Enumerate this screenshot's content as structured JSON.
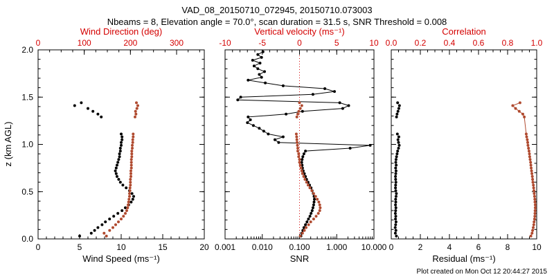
{
  "title": "VAD_08_20150710_072945, 20150710.073003",
  "subtitle": "Nbeams = 8, Elevation angle = 70.0°, scan duration = 31.5 s, SNR Threshold = 0.008",
  "footer": "Plot created on Mon Oct 12 20:44:27 2015",
  "ylabel": "z (km AGL)",
  "colors": {
    "axis_red": "#d40000",
    "series_red": "#b04a2f",
    "black": "#000000",
    "background": "#ffffff"
  },
  "chart_data": [
    {
      "type": "scatter",
      "panel": "wind",
      "xlabel_bottom": "Wind Speed (ms⁻¹)",
      "xlabel_top": "Wind Direction (deg)",
      "bottom_axis": {
        "scale": "linear",
        "lim": [
          0,
          20
        ],
        "ticks": [
          0,
          5,
          10,
          15,
          20
        ],
        "tick_labels": [
          "0",
          "5",
          "10",
          "15",
          "20"
        ],
        "minor": 1
      },
      "top_axis": {
        "scale": "linear",
        "lim": [
          0,
          360
        ],
        "ticks": [
          0,
          100,
          200,
          300
        ],
        "tick_labels": [
          "0",
          "100",
          "200",
          "300"
        ],
        "minor": 25
      },
      "y_axis": {
        "lim": [
          0,
          2
        ],
        "ticks": [
          0,
          0.5,
          1,
          1.5,
          2
        ],
        "tick_labels": [
          "0.0",
          "0.5",
          "1.0",
          "1.5",
          "2.0"
        ],
        "minor": 0.1,
        "show_labels": true
      },
      "series": [
        {
          "name": "wind-speed",
          "axis": "bottom",
          "color": "black",
          "line": false,
          "z": [
            0.03,
            0.06,
            0.09,
            0.12,
            0.15,
            0.18,
            0.21,
            0.24,
            0.27,
            0.3,
            0.33,
            0.36,
            0.39,
            0.42,
            0.45,
            0.48,
            0.51,
            0.54,
            0.57,
            0.6,
            0.63,
            0.66,
            0.69,
            0.72,
            0.75,
            0.78,
            0.81,
            0.84,
            0.87,
            0.9,
            0.93,
            0.96,
            0.99,
            1.02,
            1.05,
            1.08,
            1.11,
            1.29,
            1.32,
            1.35,
            1.38,
            1.41,
            1.44
          ],
          "v": [
            5.0,
            6.4,
            6.8,
            7.2,
            7.7,
            8.1,
            8.6,
            9.1,
            9.6,
            10.1,
            10.5,
            10.9,
            11.2,
            11.4,
            11.5,
            11.3,
            11.0,
            10.6,
            10.2,
            9.9,
            9.7,
            9.5,
            9.4,
            9.3,
            9.4,
            9.5,
            9.6,
            9.7,
            9.8,
            9.8,
            9.9,
            9.9,
            10.0,
            10.0,
            10.1,
            10.1,
            10.0,
            7.6,
            7.2,
            6.6,
            6.0,
            4.4,
            5.2
          ]
        },
        {
          "name": "wind-direction",
          "axis": "top",
          "color": "series_red",
          "line": false,
          "z": [
            0.03,
            0.06,
            0.09,
            0.12,
            0.15,
            0.18,
            0.21,
            0.24,
            0.27,
            0.3,
            0.33,
            0.36,
            0.39,
            0.42,
            0.45,
            0.48,
            0.51,
            0.54,
            0.57,
            0.6,
            0.63,
            0.66,
            0.69,
            0.72,
            0.75,
            0.78,
            0.81,
            0.84,
            0.87,
            0.9,
            0.93,
            0.96,
            0.99,
            1.02,
            1.05,
            1.08,
            1.11,
            1.29,
            1.32,
            1.35,
            1.38,
            1.41,
            1.44
          ],
          "v": [
            148,
            143,
            155,
            162,
            168,
            174,
            180,
            185,
            189,
            192,
            194,
            195,
            196,
            197,
            198,
            198,
            199,
            199,
            200,
            200,
            200,
            201,
            201,
            201,
            202,
            202,
            202,
            202,
            203,
            203,
            203,
            204,
            204,
            205,
            205,
            206,
            206,
            210,
            212,
            211,
            214,
            216,
            213
          ]
        }
      ]
    },
    {
      "type": "scatter",
      "panel": "snr-velocity",
      "xlabel_bottom": "SNR",
      "xlabel_top": "Vertical velocity (ms⁻¹)",
      "bottom_axis": {
        "scale": "log",
        "lim": [
          0.001,
          10
        ],
        "ticks": [
          0.001,
          0.01,
          0.1,
          1,
          10
        ],
        "tick_labels": [
          "0.001",
          "0.010",
          "0.100",
          "1.000",
          "10.000"
        ]
      },
      "top_axis": {
        "scale": "linear",
        "lim": [
          -10,
          10
        ],
        "ticks": [
          -10,
          -5,
          0,
          5,
          10
        ],
        "tick_labels": [
          "-10",
          "-5",
          "0",
          "5",
          "10"
        ],
        "minor": 1
      },
      "y_axis": {
        "lim": [
          0,
          2
        ],
        "ticks": [
          0,
          0.5,
          1,
          1.5,
          2
        ],
        "tick_labels": [
          "0.0",
          "0.5",
          "1.0",
          "1.5",
          "2.0"
        ],
        "minor": 0.1,
        "show_labels": false
      },
      "refline_top": 0,
      "series": [
        {
          "name": "vertical-velocity",
          "axis": "top",
          "color": "black",
          "line": true,
          "z": [
            0.03,
            0.06,
            0.09,
            0.12,
            0.15,
            0.18,
            0.21,
            0.24,
            0.27,
            0.3,
            0.33,
            0.36,
            0.39,
            0.42,
            0.45,
            0.48,
            0.51,
            0.54,
            0.57,
            0.6,
            0.63,
            0.66,
            0.69,
            0.72,
            0.75,
            0.78,
            0.81,
            0.84,
            0.87,
            0.9,
            0.93,
            0.96,
            0.99,
            1.02,
            1.05,
            1.08,
            1.11,
            1.14,
            1.17,
            1.2,
            1.23,
            1.26,
            1.29,
            1.32,
            1.35,
            1.38,
            1.41,
            1.44,
            1.47,
            1.5,
            1.53,
            1.56,
            1.59,
            1.62,
            1.65,
            1.68,
            1.71,
            1.74,
            1.77,
            1.8,
            1.83,
            1.86,
            1.89,
            1.92,
            1.95,
            1.98
          ],
          "v": [
            0.2,
            0.3,
            0.45,
            0.6,
            0.8,
            1.0,
            1.2,
            1.4,
            1.55,
            1.7,
            1.8,
            1.9,
            1.95,
            2.0,
            1.95,
            1.85,
            1.7,
            1.55,
            1.35,
            1.15,
            0.95,
            0.8,
            0.65,
            0.5,
            0.4,
            0.35,
            0.3,
            0.35,
            0.45,
            0.6,
            0.8,
            6.8,
            9.5,
            -2.8,
            -3.3,
            -2.2,
            -4.2,
            -4.8,
            -5.4,
            -6.2,
            -7.0,
            -6.6,
            -6.9,
            -1.8,
            0.4,
            5.8,
            6.6,
            5.4,
            -8.3,
            -7.9,
            1.8,
            4.7,
            3.4,
            -2.2,
            -4.6,
            -6.9,
            -5.1,
            -5.4,
            -4.7,
            -5.6,
            -6.1,
            -5.3,
            -6.3,
            -5.1,
            -5.6,
            -4.9
          ]
        },
        {
          "name": "snr",
          "axis": "bottom",
          "color": "series_red",
          "line": false,
          "z": [
            0.03,
            0.06,
            0.09,
            0.12,
            0.15,
            0.18,
            0.21,
            0.24,
            0.27,
            0.3,
            0.33,
            0.36,
            0.39,
            0.42,
            0.45,
            0.48,
            0.51,
            0.54,
            0.57,
            0.6,
            0.63,
            0.66,
            0.69,
            0.72,
            0.75,
            0.78,
            0.81,
            0.84,
            0.87,
            0.9,
            0.93,
            0.96,
            0.99,
            1.02,
            1.05,
            1.08,
            1.11,
            1.29,
            1.32,
            1.35,
            1.38,
            1.41,
            1.44
          ],
          "v": [
            0.105,
            0.12,
            0.135,
            0.15,
            0.175,
            0.2,
            0.24,
            0.28,
            0.32,
            0.35,
            0.36,
            0.35,
            0.33,
            0.3,
            0.27,
            0.24,
            0.215,
            0.19,
            0.17,
            0.155,
            0.14,
            0.13,
            0.12,
            0.115,
            0.11,
            0.105,
            0.1,
            0.1,
            0.095,
            0.095,
            0.09,
            0.09,
            0.088,
            0.086,
            0.085,
            0.084,
            0.082,
            0.085,
            0.09,
            0.096,
            0.105,
            0.115,
            0.1
          ]
        }
      ]
    },
    {
      "type": "scatter",
      "panel": "residual-correlation",
      "xlabel_bottom": "Residual (ms⁻¹)",
      "xlabel_top": "Correlation",
      "bottom_axis": {
        "scale": "linear",
        "lim": [
          0,
          10
        ],
        "ticks": [
          0,
          2,
          4,
          6,
          8,
          10
        ],
        "tick_labels": [
          "0",
          "2",
          "4",
          "6",
          "8",
          "10"
        ],
        "minor": 0.5
      },
      "top_axis": {
        "scale": "linear",
        "lim": [
          0,
          1
        ],
        "ticks": [
          0,
          0.2,
          0.4,
          0.6,
          0.8,
          1.0
        ],
        "tick_labels": [
          "0.0",
          "0.2",
          "0.4",
          "0.6",
          "0.8",
          "1.0"
        ],
        "minor": 0.05
      },
      "y_axis": {
        "lim": [
          0,
          2
        ],
        "ticks": [
          0,
          0.5,
          1,
          1.5,
          2
        ],
        "tick_labels": [
          "0.0",
          "0.5",
          "1.0",
          "1.5",
          "2.0"
        ],
        "minor": 0.1,
        "show_labels": false
      },
      "series": [
        {
          "name": "residual",
          "axis": "bottom",
          "color": "black",
          "line": false,
          "z": [
            0.03,
            0.06,
            0.09,
            0.12,
            0.15,
            0.18,
            0.21,
            0.24,
            0.27,
            0.3,
            0.33,
            0.36,
            0.39,
            0.42,
            0.45,
            0.48,
            0.51,
            0.54,
            0.57,
            0.6,
            0.63,
            0.66,
            0.69,
            0.72,
            0.75,
            0.78,
            0.81,
            0.84,
            0.87,
            0.9,
            0.93,
            0.96,
            0.99,
            1.02,
            1.05,
            1.08,
            1.11,
            1.29,
            1.32,
            1.35,
            1.38,
            1.41,
            1.44
          ],
          "v": [
            0.35,
            0.28,
            0.32,
            0.27,
            0.3,
            0.33,
            0.29,
            0.31,
            0.28,
            0.3,
            0.32,
            0.29,
            0.31,
            0.3,
            0.33,
            0.35,
            0.31,
            0.29,
            0.3,
            0.32,
            0.3,
            0.29,
            0.31,
            0.33,
            0.3,
            0.34,
            0.31,
            0.33,
            0.36,
            0.4,
            0.44,
            0.5,
            0.55,
            0.5,
            0.46,
            0.52,
            0.42,
            0.36,
            0.4,
            0.46,
            0.52,
            0.56,
            0.44
          ]
        },
        {
          "name": "correlation",
          "axis": "top",
          "color": "series_red",
          "line": true,
          "z": [
            0.03,
            0.06,
            0.09,
            0.12,
            0.15,
            0.18,
            0.21,
            0.24,
            0.27,
            0.3,
            0.33,
            0.36,
            0.39,
            0.42,
            0.45,
            0.48,
            0.51,
            0.54,
            0.57,
            0.6,
            0.63,
            0.66,
            0.69,
            0.72,
            0.75,
            0.78,
            0.81,
            0.84,
            0.87,
            0.9,
            0.93,
            0.96,
            0.99,
            1.02,
            1.05,
            1.08,
            1.11,
            1.29,
            1.32,
            1.35,
            1.38,
            1.41,
            1.44
          ],
          "v": [
            0.96,
            0.968,
            0.972,
            0.976,
            0.98,
            0.982,
            0.985,
            0.987,
            0.988,
            0.989,
            0.99,
            0.99,
            0.988,
            0.987,
            0.985,
            0.983,
            0.981,
            0.979,
            0.977,
            0.974,
            0.972,
            0.97,
            0.967,
            0.965,
            0.962,
            0.96,
            0.958,
            0.955,
            0.952,
            0.95,
            0.947,
            0.944,
            0.94,
            0.938,
            0.935,
            0.931,
            0.928,
            0.915,
            0.905,
            0.88,
            0.855,
            0.835,
            0.885
          ]
        }
      ]
    }
  ]
}
